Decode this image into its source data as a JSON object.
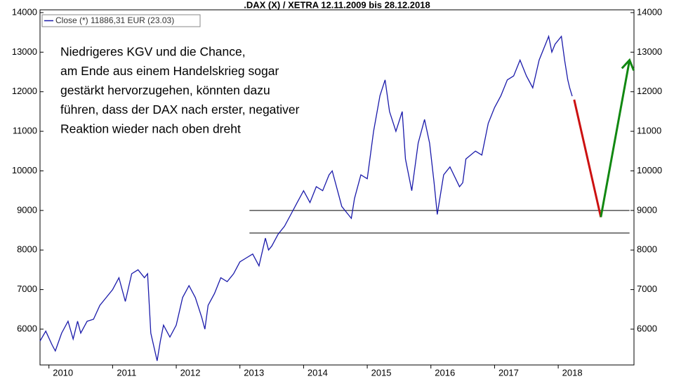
{
  "chart_data": {
    "type": "line",
    "title": ".DAX (X) / XETRA 12.11.2009 bis 28.12.2018",
    "annotation": [
      "Niedrigeres KGV und die Chance,",
      "am Ende aus einem Handelskrieg sogar",
      "gestärkt hervorzugehen, könnten dazu",
      "führen, dass der DAX nach erster, negativer",
      "Reaktion wieder nach oben dreht"
    ],
    "xlim": [
      2009.86,
      2019.19
    ],
    "xticks": [
      2010,
      2011,
      2012,
      2013,
      2014,
      2015,
      2016,
      2017,
      2018
    ],
    "ylim": [
      5095,
      14070
    ],
    "yticks": [
      6000,
      7000,
      8000,
      9000,
      10000,
      11000,
      12000,
      13000,
      14000
    ],
    "x": [
      2009.86,
      2009.95,
      2010.05,
      2010.1,
      2010.2,
      2010.3,
      2010.38,
      2010.45,
      2010.5,
      2010.6,
      2010.7,
      2010.8,
      2010.9,
      2011.0,
      2011.1,
      2011.2,
      2011.3,
      2011.4,
      2011.5,
      2011.55,
      2011.6,
      2011.7,
      2011.75,
      2011.8,
      2011.9,
      2012.0,
      2012.1,
      2012.2,
      2012.3,
      2012.4,
      2012.45,
      2012.5,
      2012.6,
      2012.7,
      2012.8,
      2012.9,
      2013.0,
      2013.1,
      2013.2,
      2013.3,
      2013.4,
      2013.45,
      2013.5,
      2013.6,
      2013.7,
      2013.8,
      2013.9,
      2014.0,
      2014.1,
      2014.2,
      2014.3,
      2014.4,
      2014.45,
      2014.55,
      2014.6,
      2014.7,
      2014.75,
      2014.8,
      2014.9,
      2015.0,
      2015.1,
      2015.2,
      2015.28,
      2015.35,
      2015.45,
      2015.55,
      2015.6,
      2015.7,
      2015.8,
      2015.9,
      2015.98,
      2016.05,
      2016.1,
      2016.2,
      2016.3,
      2016.45,
      2016.5,
      2016.55,
      2016.7,
      2016.8,
      2016.9,
      2017.0,
      2017.1,
      2017.2,
      2017.3,
      2017.4,
      2017.5,
      2017.6,
      2017.7,
      2017.8,
      2017.85,
      2017.9,
      2017.95,
      2018.05,
      2018.1,
      2018.15,
      2018.18,
      2018.22
    ],
    "series": [
      {
        "name": "Close (*) 11886,31 EUR (23.03)",
        "color": "#1a1aaa",
        "values": [
          5700,
          5950,
          5600,
          5450,
          5900,
          6200,
          5750,
          6200,
          5900,
          6200,
          6250,
          6600,
          6800,
          7000,
          7300,
          6700,
          7400,
          7500,
          7300,
          7400,
          5900,
          5200,
          5700,
          6100,
          5800,
          6100,
          6800,
          7100,
          6800,
          6300,
          6000,
          6600,
          6900,
          7300,
          7200,
          7400,
          7700,
          7800,
          7900,
          7600,
          8300,
          8000,
          8100,
          8400,
          8600,
          8900,
          9200,
          9500,
          9200,
          9600,
          9500,
          9900,
          10000,
          9400,
          9100,
          8900,
          8800,
          9300,
          9900,
          9800,
          11000,
          11900,
          12300,
          11500,
          11000,
          11500,
          10300,
          9500,
          10700,
          11300,
          10700,
          9700,
          8900,
          9900,
          10100,
          9600,
          9700,
          10300,
          10500,
          10400,
          11200,
          11600,
          11900,
          12300,
          12400,
          12800,
          12400,
          12100,
          12800,
          13200,
          13400,
          13000,
          13200,
          13400,
          12800,
          12300,
          12100,
          11886
        ]
      }
    ],
    "lines": [
      {
        "color": "#cc1111",
        "x": [
          2018.25,
          2018.67
        ],
        "values": [
          11800,
          8830
        ]
      },
      {
        "color": "#118811",
        "x": [
          2018.67,
          2019.12
        ],
        "values": [
          8830,
          12800
        ]
      }
    ],
    "hlines": [
      {
        "value": 9000,
        "x": [
          2013.15,
          2019.12
        ]
      },
      {
        "value": 8430,
        "x": [
          2013.15,
          2019.12
        ]
      }
    ]
  }
}
